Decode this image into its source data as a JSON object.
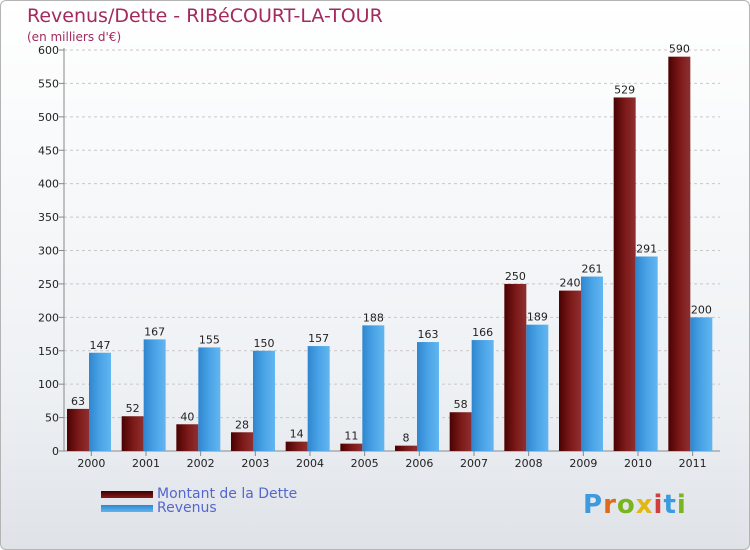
{
  "title": "Revenus/Dette - RIBéCOURT-LA-TOUR",
  "subtitle": "(en milliers d'€)",
  "brand": "Proxiti",
  "colors": {
    "dette": "#6e1010",
    "dette_light": "#8a2a2a",
    "revenus": "#4aa3e6",
    "revenus_dark": "#2f86cf",
    "title": "#a3295e",
    "legend_text": "#5566cc"
  },
  "chart_data": {
    "type": "bar",
    "title": "Revenus/Dette - RIBéCOURT-LA-TOUR",
    "ylabel": "(en milliers d'€)",
    "xlabel": "",
    "categories": [
      "2000",
      "2001",
      "2002",
      "2003",
      "2004",
      "2005",
      "2006",
      "2007",
      "2008",
      "2009",
      "2010",
      "2011"
    ],
    "series": [
      {
        "name": "Montant de la Dette",
        "values": [
          63,
          52,
          40,
          28,
          14,
          11,
          8,
          58,
          250,
          240,
          529,
          590
        ]
      },
      {
        "name": "Revenus",
        "values": [
          147,
          167,
          155,
          150,
          157,
          188,
          163,
          166,
          189,
          261,
          291,
          200
        ]
      }
    ],
    "ylim": [
      0,
      600
    ],
    "yticks": [
      0,
      50,
      100,
      150,
      200,
      250,
      300,
      350,
      400,
      450,
      500,
      550,
      600
    ],
    "grid": true,
    "legend": "bottom-left"
  }
}
